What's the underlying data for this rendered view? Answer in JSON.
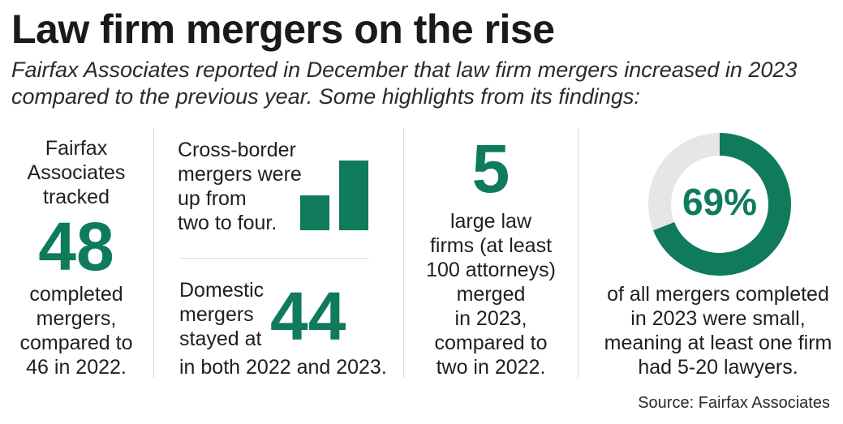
{
  "title": "Law firm mergers on the rise",
  "subtitle": "Fairfax Associates reported in December that law firm mergers increased in 2023 compared to the previous year. Some highlights from its findings:",
  "colors": {
    "accent": "#0f7a5c",
    "ring_track": "#e6e6e6"
  },
  "stats": {
    "total": {
      "lines_before": [
        "Fairfax",
        "Associates",
        "tracked"
      ],
      "number": "48",
      "lines_after": [
        "completed",
        "mergers,",
        "compared to",
        "46 in 2022."
      ]
    },
    "cross_border": {
      "lines": [
        "Cross-border",
        "mergers were",
        "up from",
        "two to four."
      ],
      "bars": [
        2,
        4
      ]
    },
    "domestic": {
      "lines": [
        "Domestic",
        "mergers",
        "stayed at"
      ],
      "number": "44",
      "tail": "in both 2022 and 2023."
    },
    "large": {
      "number": "5",
      "lines": [
        "large law",
        "firms (at least",
        "100 attorneys)",
        "merged",
        "in 2023,",
        "compared to",
        "two in 2022."
      ]
    },
    "small": {
      "percent_label": "69%",
      "percent_value": 69,
      "lines": [
        "of all mergers completed",
        "in 2023 were small,",
        "meaning at least one firm",
        "had 5-20 lawyers."
      ]
    }
  },
  "source": "Source: Fairfax Associates"
}
